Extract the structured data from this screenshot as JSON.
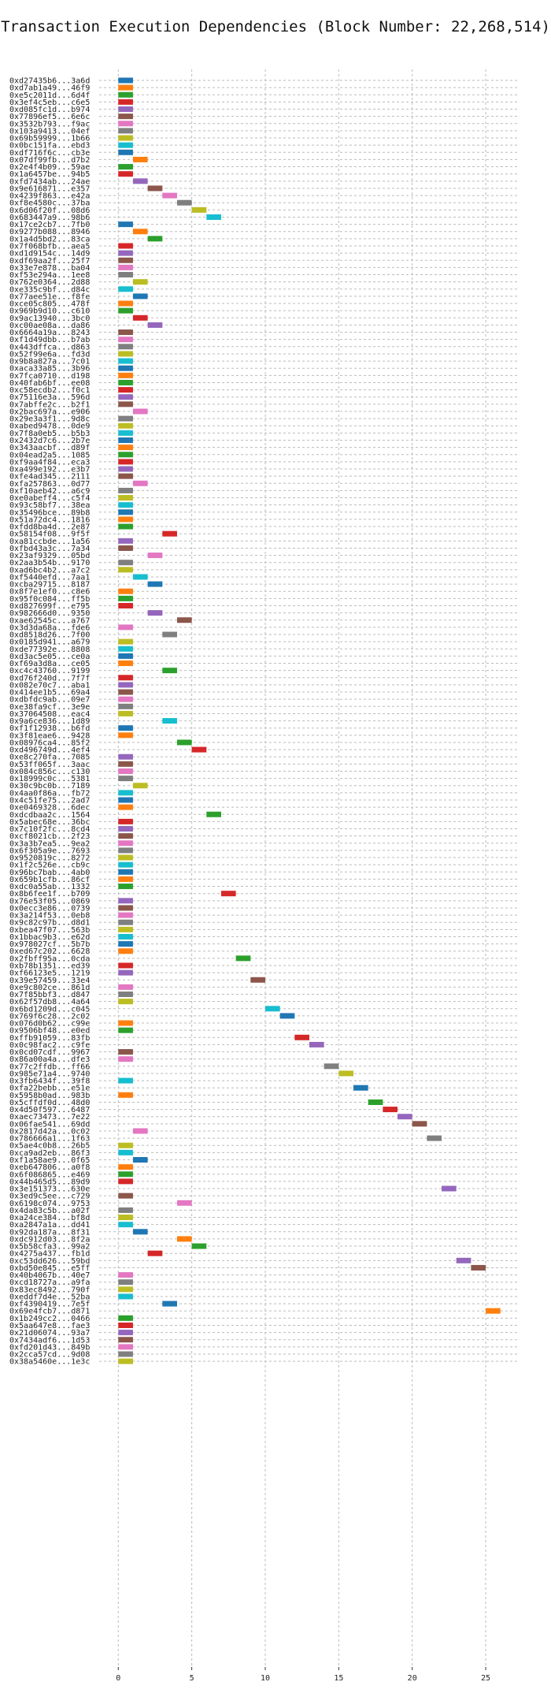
{
  "chart_data": {
    "type": "bar",
    "orientation": "horizontal",
    "title": "Transaction Execution Dependencies (Block Number: 22,268,514)",
    "xlabel": "",
    "ylabel": "",
    "xlim": [
      -1.3,
      27.3
    ],
    "xticks": [
      0,
      5,
      10,
      15,
      20,
      25
    ],
    "grid": true,
    "bar_width": 1,
    "palette": [
      "#1f77b4",
      "#ff7f0e",
      "#2ca02c",
      "#d62728",
      "#9467bd",
      "#8c564b",
      "#e377c2",
      "#7f7f7f",
      "#bcbd22",
      "#17becf"
    ],
    "bars": [
      [
        "0xd27435b6...3a6d",
        0,
        0
      ],
      [
        "0xd7ab1a49...46f9",
        0,
        1
      ],
      [
        "0xe5c2011d...6d4f",
        0,
        2
      ],
      [
        "0x3ef4c5eb...c6e5",
        0,
        3
      ],
      [
        "0xd085fc1d...b974",
        0,
        4
      ],
      [
        "0x77896ef5...6e6c",
        0,
        5
      ],
      [
        "0x3532b793...f9ac",
        0,
        6
      ],
      [
        "0x103a9413...04ef",
        0,
        7
      ],
      [
        "0x69b59999...1b66",
        0,
        8
      ],
      [
        "0x0bc151fa...ebd3",
        0,
        9
      ],
      [
        "0xdf716f6c...cb3e",
        0,
        0
      ],
      [
        "0x07df99fb...d7b2",
        1,
        1
      ],
      [
        "0x2e4f4b09...59ae",
        0,
        2
      ],
      [
        "0x1a6457be...94b5",
        0,
        3
      ],
      [
        "0xfd7434ab...24ae",
        1,
        4
      ],
      [
        "0x9e616871...e357",
        2,
        5
      ],
      [
        "0x4239f863...e42a",
        3,
        6
      ],
      [
        "0xf8e4580c...37ba",
        4,
        7
      ],
      [
        "0x6d06f20f...08d6",
        5,
        8
      ],
      [
        "0x683447a9...98b6",
        6,
        9
      ],
      [
        "0x17ce2cb7...7fb0",
        0,
        0
      ],
      [
        "0x9277b088...8946",
        1,
        1
      ],
      [
        "0x1a4d5bd2...83ca",
        2,
        2
      ],
      [
        "0x7f068bfb...aea5",
        0,
        3
      ],
      [
        "0xd1d9154c...14d9",
        0,
        4
      ],
      [
        "0xdf69aa2f...25f7",
        0,
        5
      ],
      [
        "0x33e7e878...ba04",
        0,
        6
      ],
      [
        "0xf53e294a...1ee8",
        0,
        7
      ],
      [
        "0x762e0364...2d88",
        1,
        8
      ],
      [
        "0xe335c9bf...d84c",
        0,
        9
      ],
      [
        "0x77aee51e...f8fe",
        1,
        0
      ],
      [
        "0xce05c805...478f",
        0,
        1
      ],
      [
        "0x969b9d10...c610",
        0,
        2
      ],
      [
        "0x9ac13940...3bc0",
        1,
        3
      ],
      [
        "0xc00ae08a...da86",
        2,
        4
      ],
      [
        "0x6664a19a...8243",
        0,
        5
      ],
      [
        "0xf1d49dbb...b7ab",
        0,
        6
      ],
      [
        "0x443dffca...d863",
        0,
        7
      ],
      [
        "0x52f99e6a...fd3d",
        0,
        8
      ],
      [
        "0x9b8a827a...7c01",
        0,
        9
      ],
      [
        "0xaca33a85...3b96",
        0,
        0
      ],
      [
        "0x7fca0710...d198",
        0,
        1
      ],
      [
        "0x40fab6bf...ee08",
        0,
        2
      ],
      [
        "0xc58ecdb2...f0c1",
        0,
        3
      ],
      [
        "0x75116e3a...596d",
        0,
        4
      ],
      [
        "0x7abffe2c...b2f1",
        0,
        5
      ],
      [
        "0x2bac697a...e906",
        1,
        6
      ],
      [
        "0x29e3a3f1...9d8c",
        0,
        7
      ],
      [
        "0xabed9478...0de9",
        0,
        8
      ],
      [
        "0x7f8a0eb5...b5b3",
        0,
        9
      ],
      [
        "0x2432d7c6...2b7e",
        0,
        0
      ],
      [
        "0x343aacbf...d89f",
        0,
        1
      ],
      [
        "0x04ead2a5...1085",
        0,
        2
      ],
      [
        "0xf9aa4f84...eca3",
        0,
        3
      ],
      [
        "0xa499e192...e3b7",
        0,
        4
      ],
      [
        "0xfe4ad345...2111",
        0,
        5
      ],
      [
        "0xfa257863...0d77",
        1,
        6
      ],
      [
        "0xf10aeb42...a6c9",
        0,
        7
      ],
      [
        "0xe0abeff4...c5f4",
        0,
        8
      ],
      [
        "0x93c58bf7...38ea",
        0,
        9
      ],
      [
        "0x35496bce...89b8",
        0,
        0
      ],
      [
        "0x51a72dc4...1816",
        0,
        1
      ],
      [
        "0xfdd8ba4d...2e87",
        0,
        2
      ],
      [
        "0x58154f08...9f5f",
        3,
        3
      ],
      [
        "0xa81ccbde...1a56",
        0,
        4
      ],
      [
        "0xfbd43a3c...7a34",
        0,
        5
      ],
      [
        "0x23af9329...05bd",
        2,
        6
      ],
      [
        "0x2aa3b54b...9170",
        0,
        7
      ],
      [
        "0xad6bc4b2...a7c2",
        0,
        8
      ],
      [
        "0xf5440efd...7aa1",
        1,
        9
      ],
      [
        "0xcba29715...8187",
        2,
        0
      ],
      [
        "0x8f7e1ef0...c8e6",
        0,
        1
      ],
      [
        "0x95f0c084...ff5b",
        0,
        2
      ],
      [
        "0xd827699f...e795",
        0,
        3
      ],
      [
        "0x982666d0...9350",
        2,
        4
      ],
      [
        "0xae62545c...a767",
        4,
        5
      ],
      [
        "0x3d3da68a...fde6",
        0,
        6
      ],
      [
        "0xd8518d26...7f00",
        3,
        7
      ],
      [
        "0x0185d941...a679",
        0,
        8
      ],
      [
        "0xde77392e...8808",
        0,
        9
      ],
      [
        "0xd3ac5e05...ce0a",
        0,
        0
      ],
      [
        "0xf69a3d8a...ce05",
        0,
        1
      ],
      [
        "0xc4c43760...9199",
        3,
        2
      ],
      [
        "0xd76f240d...7f7f",
        0,
        3
      ],
      [
        "0x082e70c7...aba1",
        0,
        4
      ],
      [
        "0x414ee1b5...69a4",
        0,
        5
      ],
      [
        "0xdbfdc9ab...09e7",
        0,
        6
      ],
      [
        "0xe38fa9cf...3e9e",
        0,
        7
      ],
      [
        "0x37064508...eac4",
        0,
        8
      ],
      [
        "0x9a6ce836...1d89",
        3,
        9
      ],
      [
        "0xf1f12938...b6fd",
        0,
        0
      ],
      [
        "0x3f81eae6...9428",
        0,
        1
      ],
      [
        "0x08976ca4...85f2",
        4,
        2
      ],
      [
        "0xd496749d...4ef4",
        5,
        3
      ],
      [
        "0xe8c270fa...7085",
        0,
        4
      ],
      [
        "0x53ff065f...3aac",
        0,
        5
      ],
      [
        "0x084c856c...c130",
        0,
        6
      ],
      [
        "0x18999c0c...5381",
        0,
        7
      ],
      [
        "0x30c9bc0b...7189",
        1,
        8
      ],
      [
        "0x4aa0f86a...fb72",
        0,
        9
      ],
      [
        "0x4c51fe75...2ad7",
        0,
        0
      ],
      [
        "0xe0469328...6dec",
        0,
        1
      ],
      [
        "0xdcdbaa2c...1564",
        6,
        2
      ],
      [
        "0x5abec68e...36bc",
        0,
        3
      ],
      [
        "0x7c10f2fc...8cd4",
        0,
        4
      ],
      [
        "0xcf8021cb...2f23",
        0,
        5
      ],
      [
        "0x3a3b7ea5...9ea2",
        0,
        6
      ],
      [
        "0x6f305a9e...7693",
        0,
        7
      ],
      [
        "0x9520819c...8272",
        0,
        8
      ],
      [
        "0x1f2c526e...cb9c",
        0,
        9
      ],
      [
        "0x96bc7bab...4ab0",
        0,
        0
      ],
      [
        "0x659b1cfb...86cf",
        0,
        1
      ],
      [
        "0xdc0a55ab...1332",
        0,
        2
      ],
      [
        "0x8b6fee1f...b709",
        7,
        3
      ],
      [
        "0x76e53f05...0869",
        0,
        4
      ],
      [
        "0x0ecc3e86...0739",
        0,
        5
      ],
      [
        "0x3a214f53...0eb8",
        0,
        6
      ],
      [
        "0x9c82c97b...d8d1",
        0,
        7
      ],
      [
        "0xbea47f07...563b",
        0,
        8
      ],
      [
        "0x1bbac9b3...e62d",
        0,
        9
      ],
      [
        "0x978027cf...5b7b",
        0,
        0
      ],
      [
        "0xed67c202...6628",
        0,
        1
      ],
      [
        "0x2fbff95a...0cda",
        8,
        2
      ],
      [
        "0xb78b1351...ed39",
        0,
        3
      ],
      [
        "0xf66123e5...1219",
        0,
        4
      ],
      [
        "0x39e57459...33e4",
        9,
        5
      ],
      [
        "0xe9c802ce...861d",
        0,
        6
      ],
      [
        "0x7f85bbf3...d847",
        0,
        7
      ],
      [
        "0x62f57db8...4a64",
        0,
        8
      ],
      [
        "0x6bd1209d...c045",
        10,
        9
      ],
      [
        "0x769f6c28...2c02",
        11,
        0
      ],
      [
        "0x076d0b62...c99e",
        0,
        1
      ],
      [
        "0x9506bf48...e0ed",
        0,
        2
      ],
      [
        "0xffb91059...83fb",
        12,
        3
      ],
      [
        "0x0c98fac2...c9fe",
        13,
        4
      ],
      [
        "0x0cd07cdf...9967",
        0,
        5
      ],
      [
        "0x86a00a4a...dfe3",
        0,
        6
      ],
      [
        "0x77c2ffdb...ff66",
        14,
        7
      ],
      [
        "0x985e71a4...9740",
        15,
        8
      ],
      [
        "0x3fb6434f...39f8",
        0,
        9
      ],
      [
        "0xfa22bebb...e51e",
        16,
        0
      ],
      [
        "0x5958b0ad...983b",
        0,
        1
      ],
      [
        "0x5cffdf0d...48d0",
        17,
        2
      ],
      [
        "0x4d50f597...6487",
        18,
        3
      ],
      [
        "0xaec73473...7e22",
        19,
        4
      ],
      [
        "0x06fae541...69dd",
        20,
        5
      ],
      [
        "0x2817d42a...0c02",
        1,
        6
      ],
      [
        "0x786666a1...1f63",
        21,
        7
      ],
      [
        "0x5ae4c0b8...26b5",
        0,
        8
      ],
      [
        "0xca9ad2eb...86f3",
        0,
        9
      ],
      [
        "0xf1a58ae9...0f65",
        1,
        0
      ],
      [
        "0xeb647806...a0f8",
        0,
        1
      ],
      [
        "0x6f086865...e469",
        0,
        2
      ],
      [
        "0x44b465d5...89d9",
        0,
        3
      ],
      [
        "0x3e151373...630e",
        22,
        4
      ],
      [
        "0x3ed9c5ee...c729",
        0,
        5
      ],
      [
        "0x6198c074...9753",
        4,
        6
      ],
      [
        "0x4da83c5b...a02f",
        0,
        7
      ],
      [
        "0xa24ce384...bf8d",
        0,
        8
      ],
      [
        "0xa2847a1a...dd41",
        0,
        9
      ],
      [
        "0x92da187a...8f31",
        1,
        0
      ],
      [
        "0xdc912d03...8f2a",
        4,
        1
      ],
      [
        "0x5b58cfa3...99a2",
        5,
        2
      ],
      [
        "0x4275a437...fb1d",
        2,
        3
      ],
      [
        "0xc53dd626...59bd",
        23,
        4
      ],
      [
        "0xbd50e845...e5ff",
        24,
        5
      ],
      [
        "0x40b4067b...40e7",
        0,
        6
      ],
      [
        "0xcd18727a...a9fa",
        0,
        7
      ],
      [
        "0x83ec8492...790f",
        0,
        8
      ],
      [
        "0xeddf7d4e...52ba",
        0,
        9
      ],
      [
        "0xf4390419...7e5f",
        3,
        0
      ],
      [
        "0x69e4fcb7...d871",
        25,
        1
      ],
      [
        "0x1b249cc2...0466",
        0,
        2
      ],
      [
        "0x5aa647e8...fae3",
        0,
        3
      ],
      [
        "0x21d06074...93a7",
        0,
        4
      ],
      [
        "0x7434adf6...1d53",
        0,
        5
      ],
      [
        "0xfd201d43...849b",
        0,
        6
      ],
      [
        "0x2cca57cd...9d08",
        0,
        7
      ],
      [
        "0x38a5460e...1e3c",
        0,
        8
      ]
    ]
  }
}
